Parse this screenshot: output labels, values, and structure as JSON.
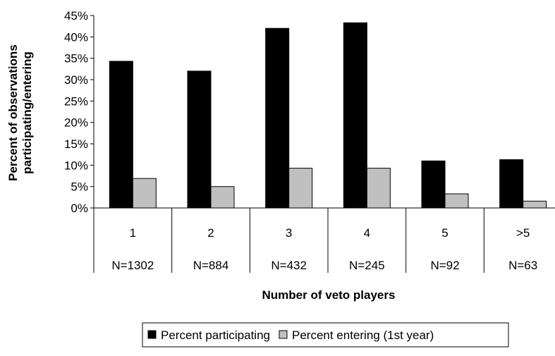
{
  "chart_data": {
    "type": "bar",
    "categories": [
      "1",
      "2",
      "3",
      "4",
      "5",
      ">5"
    ],
    "sample_sizes": [
      "N=1302",
      "N=884",
      "N=432",
      "N=245",
      "N=92",
      "N=63"
    ],
    "series": [
      {
        "name": "Percent participating",
        "values": [
          34.3,
          32.0,
          42.0,
          43.3,
          11.0,
          11.3
        ],
        "color": "#000000"
      },
      {
        "name": "Percent entering (1st year)",
        "values": [
          6.9,
          5.0,
          9.3,
          9.3,
          3.3,
          1.6
        ],
        "color": "#c0c0c0"
      }
    ],
    "xlabel": "Number of veto players",
    "ylabel_lines": [
      "Percent of observations",
      "participating/entering"
    ],
    "ylim": [
      0,
      45
    ],
    "yticks": [
      0,
      5,
      10,
      15,
      20,
      25,
      30,
      35,
      40,
      45
    ],
    "ytick_suffix": "%",
    "grid": false,
    "legend_position": "bottom"
  }
}
